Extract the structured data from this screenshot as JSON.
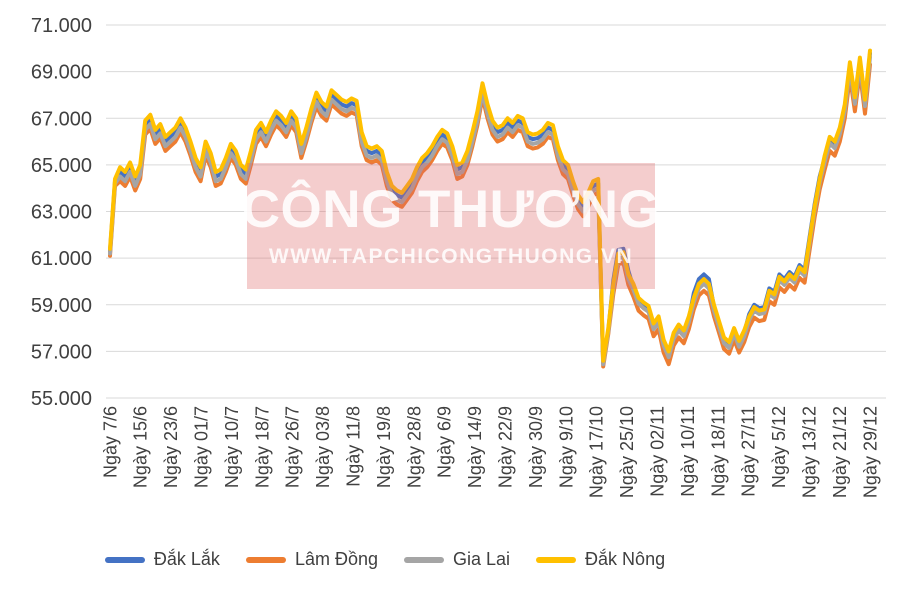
{
  "watermark": {
    "title": "CÔNG THƯƠNG",
    "subtitle": "WWW.TAPCHICONGTHUONG.VN",
    "box_color": "#DE6868",
    "text_color": "#FFFFFF"
  },
  "chart_data": {
    "type": "line",
    "title": "",
    "xlabel": "",
    "ylabel": "",
    "grid": true,
    "legend_position": "bottom",
    "gridline_color": "#D9D9D9",
    "axis_text_color": "#404040",
    "y_axis": {
      "min": 55000,
      "max": 71000,
      "step": 2000,
      "tick_labels_top_to_bottom": [
        "71.000",
        "69.000",
        "67.000",
        "65.000",
        "63.000",
        "61.000",
        "59.000",
        "57.000",
        "55.000"
      ]
    },
    "x_axis": {
      "tick_labels": [
        "Ngày 7/6",
        "Ngày 15/6",
        "Ngày 23/6",
        "Ngày 01/7",
        "Ngày 10/7",
        "Ngày 18/7",
        "Ngày 26/7",
        "Ngày 03/8",
        "Ngày 11/8",
        "Ngày 19/8",
        "Ngày 28/8",
        "Ngày 6/9",
        "Ngày 14/9",
        "Ngày 22/9",
        "Ngày 30/9",
        "Ngày 9/10",
        "Ngày 17/10",
        "Ngày 25/10",
        "Ngày 02/11",
        "Ngày 10/11",
        "Ngày 18/11",
        "Ngày 27/11",
        "Ngày 5/12",
        "Ngày 13/12",
        "Ngày 21/12",
        "Ngày 29/12"
      ]
    },
    "series": [
      {
        "name": "Đắk Lắk",
        "slug": "dak-lak",
        "color": "#4472C4",
        "values": [
          61300,
          64300,
          64700,
          64500,
          64900,
          64300,
          64800,
          66700,
          66950,
          66300,
          66550,
          66000,
          66200,
          66400,
          66800,
          66400,
          65800,
          65100,
          64700,
          65800,
          65300,
          64500,
          64600,
          65100,
          65700,
          65400,
          64800,
          64600,
          65400,
          66300,
          66600,
          66200,
          66700,
          67100,
          66900,
          66600,
          67100,
          66800,
          65700,
          66400,
          67200,
          67900,
          67500,
          67300,
          68000,
          67800,
          67600,
          67500,
          67650,
          67550,
          66200,
          65600,
          65500,
          65600,
          65400,
          64500,
          63900,
          63700,
          63600,
          63900,
          64200,
          64700,
          65100,
          65300,
          65600,
          66000,
          66300,
          66150,
          65600,
          64800,
          64900,
          65400,
          66200,
          67100,
          68300,
          67400,
          66700,
          66400,
          66500,
          66800,
          66600,
          66900,
          66800,
          66200,
          66100,
          66150,
          66300,
          66600,
          66500,
          65600,
          65000,
          64800,
          64100,
          63500,
          63200,
          63600,
          64100,
          64200,
          56500,
          57900,
          60050,
          61350,
          61400,
          60450,
          59750,
          59150,
          58950,
          58800,
          58050,
          58350,
          57350,
          56850,
          57650,
          58000,
          57750,
          58350,
          59500,
          60100,
          60300,
          60100,
          58900,
          58200,
          57500,
          57300,
          57900,
          57350,
          57800,
          58600,
          59000,
          58850,
          58900,
          59700,
          59550,
          60300,
          60100,
          60400,
          60200,
          60700,
          60500,
          61900,
          63300,
          64500,
          65280,
          66080,
          65880,
          66480,
          67480,
          69280,
          67780,
          69480,
          67680,
          69780
        ]
      },
      {
        "name": "Lâm Đồng",
        "slug": "lam-dong",
        "color": "#ED7D31",
        "values": [
          61100,
          64100,
          64300,
          64100,
          64500,
          63900,
          64400,
          66300,
          66550,
          65900,
          66150,
          65600,
          65800,
          66000,
          66400,
          66000,
          65400,
          64700,
          64300,
          65400,
          64900,
          64100,
          64200,
          64700,
          65300,
          65000,
          64400,
          64200,
          65000,
          65900,
          66200,
          65800,
          66300,
          66700,
          66500,
          66200,
          66700,
          66400,
          65300,
          66000,
          66800,
          67500,
          67100,
          66900,
          67600,
          67400,
          67200,
          67100,
          67250,
          67150,
          65800,
          65200,
          65100,
          65200,
          65000,
          64100,
          63500,
          63300,
          63200,
          63500,
          63800,
          64300,
          64700,
          64900,
          65200,
          65600,
          65900,
          65750,
          65200,
          64400,
          64500,
          65000,
          65800,
          66700,
          67900,
          67000,
          66300,
          66000,
          66100,
          66400,
          66200,
          66500,
          66400,
          65800,
          65700,
          65750,
          65900,
          66200,
          66100,
          65200,
          64600,
          64400,
          63700,
          63100,
          62800,
          63200,
          63700,
          63800,
          56350,
          57750,
          59450,
          60750,
          60800,
          59850,
          59350,
          58750,
          58550,
          58400,
          57650,
          57950,
          56950,
          56450,
          57250,
          57600,
          57350,
          57950,
          58800,
          59400,
          59600,
          59400,
          58500,
          57800,
          57100,
          56900,
          57500,
          56950,
          57400,
          58050,
          58450,
          58300,
          58350,
          59150,
          59000,
          59750,
          59550,
          59850,
          59650,
          60150,
          59950,
          61350,
          62750,
          63950,
          64800,
          65600,
          65400,
          66000,
          67000,
          68800,
          67300,
          69000,
          67200,
          69300
        ]
      },
      {
        "name": "Gia Lai",
        "slug": "gia-lai",
        "color": "#A5A5A5",
        "values": [
          61200,
          64200,
          64500,
          64300,
          64700,
          64100,
          64600,
          66500,
          66750,
          66100,
          66350,
          65800,
          66000,
          66200,
          66600,
          66200,
          65600,
          64900,
          64500,
          65600,
          65100,
          64300,
          64400,
          64900,
          65500,
          65200,
          64600,
          64400,
          65200,
          66100,
          66400,
          66000,
          66500,
          66900,
          66700,
          66400,
          66900,
          66600,
          65500,
          66200,
          67000,
          67700,
          67300,
          67100,
          67800,
          67600,
          67400,
          67300,
          67450,
          67350,
          66000,
          65400,
          65300,
          65400,
          65200,
          64300,
          63700,
          63500,
          63400,
          63700,
          64000,
          64500,
          64900,
          65100,
          65400,
          65800,
          66100,
          65950,
          65400,
          64600,
          64700,
          65200,
          66000,
          66900,
          68100,
          67200,
          66500,
          66200,
          66300,
          66600,
          66400,
          66700,
          66600,
          66000,
          65900,
          65950,
          66100,
          66400,
          66300,
          65400,
          64800,
          64600,
          63900,
          63300,
          63000,
          63400,
          63900,
          64000,
          56450,
          57850,
          59700,
          61000,
          61050,
          60100,
          59650,
          59050,
          58850,
          58700,
          57950,
          58250,
          57250,
          56750,
          57550,
          57900,
          57650,
          58250,
          59100,
          59700,
          59900,
          59700,
          58750,
          58050,
          57350,
          57150,
          57750,
          57200,
          57650,
          58350,
          58750,
          58600,
          58650,
          59450,
          59300,
          60050,
          59850,
          60150,
          59950,
          60450,
          60250,
          61650,
          63050,
          64250,
          65120,
          65920,
          65720,
          66320,
          67320,
          69120,
          67620,
          69320,
          67520,
          69620
        ]
      },
      {
        "name": "Đắk Nông",
        "slug": "dak-nong",
        "color": "#FFC000",
        "values": [
          61400,
          64400,
          64900,
          64700,
          65100,
          64500,
          65000,
          66900,
          67150,
          66500,
          66750,
          66200,
          66400,
          66600,
          67000,
          66600,
          66000,
          65300,
          64900,
          66000,
          65500,
          64700,
          64800,
          65300,
          65900,
          65600,
          65000,
          64800,
          65600,
          66500,
          66800,
          66400,
          66900,
          67300,
          67100,
          66800,
          67300,
          67000,
          65900,
          66600,
          67400,
          68100,
          67700,
          67500,
          68200,
          68000,
          67800,
          67700,
          67850,
          67750,
          66400,
          65800,
          65700,
          65800,
          65600,
          64700,
          64100,
          63900,
          63800,
          64100,
          64400,
          64900,
          65300,
          65500,
          65800,
          66200,
          66500,
          66350,
          65800,
          65000,
          65100,
          65600,
          66400,
          67300,
          68500,
          67600,
          66900,
          66600,
          66700,
          67000,
          66800,
          67100,
          67000,
          66400,
          66300,
          66350,
          66500,
          66800,
          66700,
          65800,
          65200,
          65000,
          64300,
          63700,
          63400,
          63800,
          64300,
          64400,
          56600,
          58000,
          59900,
          61200,
          61250,
          60300,
          59900,
          59300,
          59100,
          58950,
          58200,
          58500,
          57500,
          57000,
          57800,
          58150,
          57900,
          58500,
          59300,
          59900,
          60100,
          59900,
          59000,
          58300,
          57600,
          57400,
          58000,
          57450,
          57900,
          58500,
          58900,
          58750,
          58800,
          59600,
          59450,
          60200,
          60000,
          60300,
          60100,
          60600,
          60400,
          61800,
          63200,
          64400,
          65400,
          66200,
          66000,
          66600,
          67600,
          69400,
          67900,
          69600,
          67800,
          69900
        ]
      }
    ]
  }
}
